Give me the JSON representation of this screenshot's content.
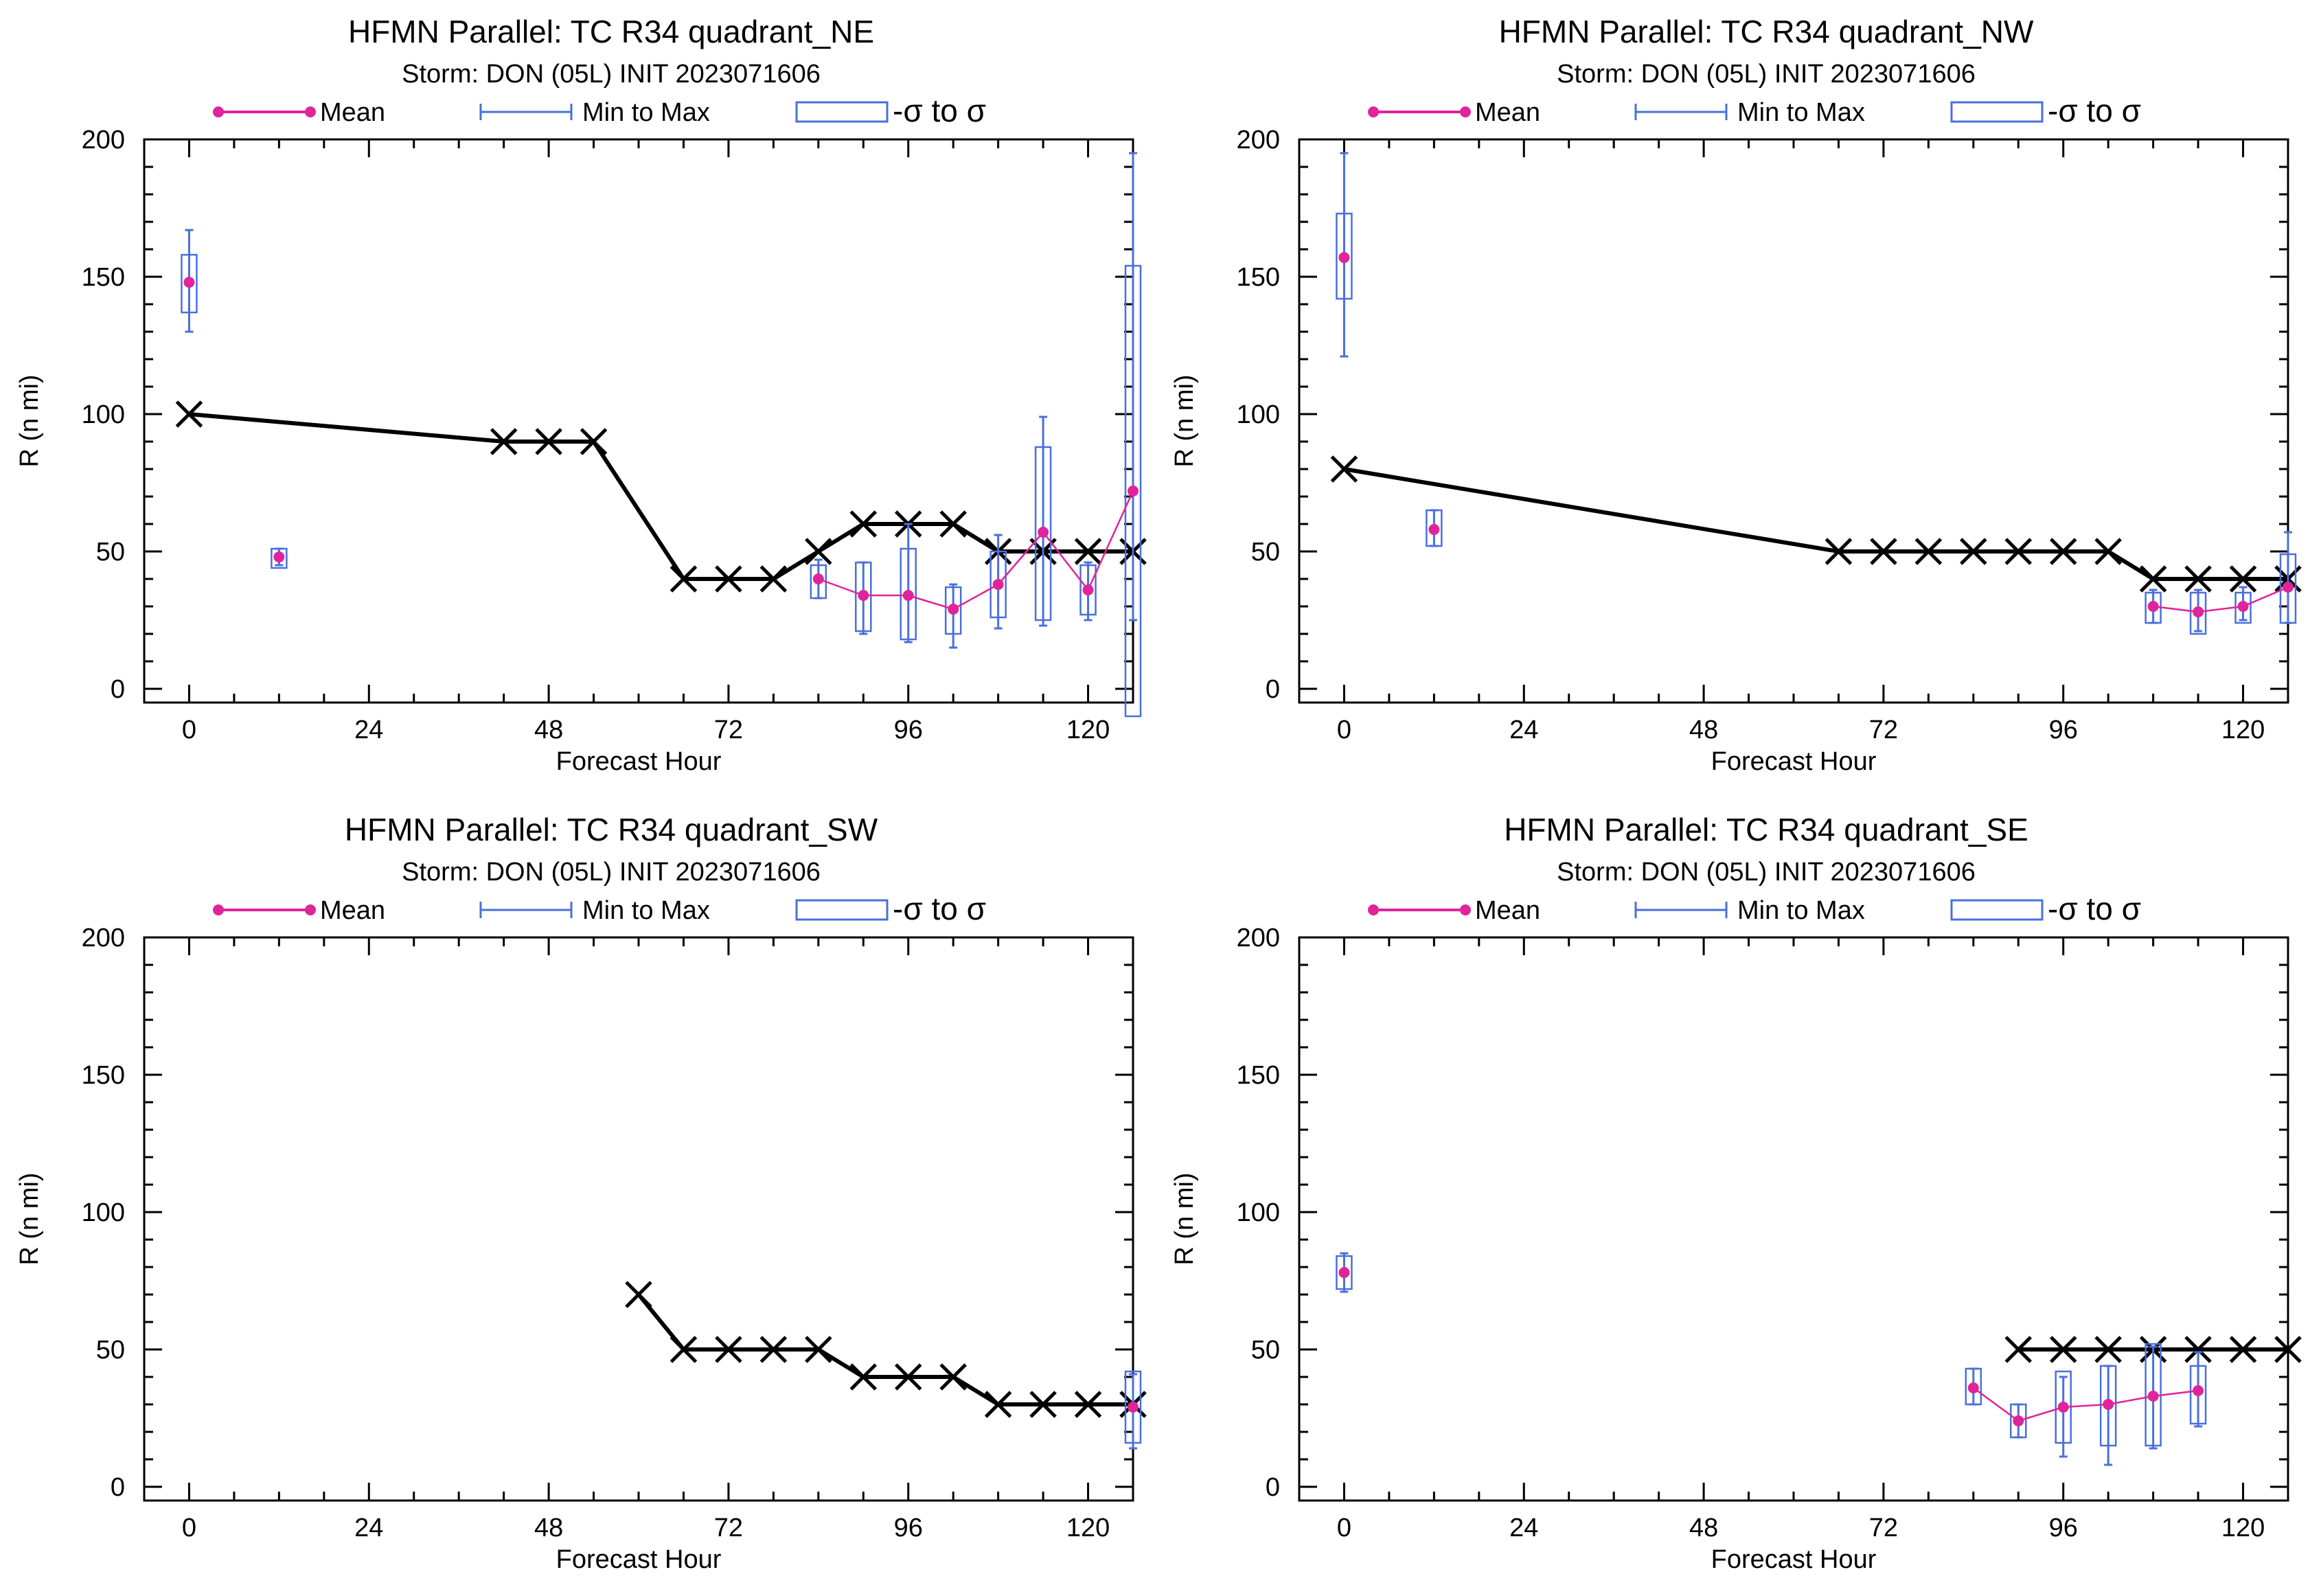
{
  "colors": {
    "mean": "#e0249a",
    "minmax": "#4a6fdc",
    "sigma": "#4a6fdc",
    "obs": "#000000"
  },
  "legend": {
    "mean": "Mean",
    "minmax": "Min to Max",
    "sigma": "-σ to σ"
  },
  "axes": {
    "xlabel": "Forecast Hour",
    "ylabel": "R (n mi)",
    "xticks": [
      0,
      24,
      48,
      72,
      96,
      120
    ],
    "yticks": [
      0,
      50,
      100,
      150,
      200
    ],
    "xlim": [
      -6,
      126
    ],
    "ylim": [
      -5,
      200
    ]
  },
  "chart_data": [
    {
      "type": "line",
      "title": "HFMN Parallel: TC  R34 quadrant_NE",
      "subtitle": "Storm: DON (05L) INIT 2023071606",
      "xlabel": "Forecast Hour",
      "ylabel": "R (n mi)",
      "obs": [
        [
          0,
          100
        ],
        [
          42,
          90
        ],
        [
          48,
          90
        ],
        [
          54,
          90
        ],
        [
          66,
          40
        ],
        [
          72,
          40
        ],
        [
          78,
          40
        ],
        [
          84,
          50
        ],
        [
          90,
          60
        ],
        [
          96,
          60
        ],
        [
          102,
          60
        ],
        [
          108,
          50
        ],
        [
          114,
          50
        ],
        [
          120,
          50
        ],
        [
          126,
          50
        ]
      ],
      "stats": [
        {
          "x": 0,
          "mean": 148,
          "min": 130,
          "max": 167,
          "lo": 137,
          "hi": 158
        },
        {
          "x": 12,
          "mean": 48,
          "min": 45,
          "max": 51,
          "lo": 44,
          "hi": 51
        },
        {
          "x": 84,
          "mean": 40,
          "min": 33,
          "max": 47,
          "lo": 33,
          "hi": 45
        },
        {
          "x": 90,
          "mean": 34,
          "min": 20,
          "max": 46,
          "lo": 21,
          "hi": 46
        },
        {
          "x": 96,
          "mean": 34,
          "min": 17,
          "max": 60,
          "lo": 18,
          "hi": 51
        },
        {
          "x": 102,
          "mean": 29,
          "min": 15,
          "max": 38,
          "lo": 20,
          "hi": 37
        },
        {
          "x": 108,
          "mean": 38,
          "min": 22,
          "max": 56,
          "lo": 26,
          "hi": 50
        },
        {
          "x": 114,
          "mean": 57,
          "min": 23,
          "max": 99,
          "lo": 25,
          "hi": 88
        },
        {
          "x": 120,
          "mean": 36,
          "min": 25,
          "max": 46,
          "lo": 27,
          "hi": 45
        },
        {
          "x": 126,
          "mean": 72,
          "min": 25,
          "max": 195,
          "lo": -10,
          "hi": 154
        }
      ]
    },
    {
      "type": "line",
      "title": "HFMN Parallel: TC  R34 quadrant_NW",
      "subtitle": "Storm: DON (05L) INIT 2023071606",
      "xlabel": "Forecast Hour",
      "ylabel": "R (n mi)",
      "obs": [
        [
          0,
          80
        ],
        [
          66,
          50
        ],
        [
          72,
          50
        ],
        [
          78,
          50
        ],
        [
          84,
          50
        ],
        [
          90,
          50
        ],
        [
          96,
          50
        ],
        [
          102,
          50
        ],
        [
          108,
          40
        ],
        [
          114,
          40
        ],
        [
          120,
          40
        ],
        [
          126,
          40
        ]
      ],
      "stats": [
        {
          "x": 0,
          "mean": 157,
          "min": 121,
          "max": 195,
          "lo": 142,
          "hi": 173
        },
        {
          "x": 12,
          "mean": 58,
          "min": 52,
          "max": 65,
          "lo": 52,
          "hi": 65
        },
        {
          "x": 108,
          "mean": 30,
          "min": 24,
          "max": 36,
          "lo": 24,
          "hi": 35
        },
        {
          "x": 114,
          "mean": 28,
          "min": 21,
          "max": 36,
          "lo": 20,
          "hi": 35
        },
        {
          "x": 120,
          "mean": 30,
          "min": 25,
          "max": 37,
          "lo": 24,
          "hi": 35
        },
        {
          "x": 126,
          "mean": 37,
          "min": 24,
          "max": 57,
          "lo": 24,
          "hi": 49
        }
      ]
    },
    {
      "type": "line",
      "title": "HFMN Parallel: TC  R34 quadrant_SW",
      "subtitle": "Storm: DON (05L) INIT 2023071606",
      "xlabel": "Forecast Hour",
      "ylabel": "R (n mi)",
      "obs": [
        [
          60,
          70
        ],
        [
          66,
          50
        ],
        [
          72,
          50
        ],
        [
          78,
          50
        ],
        [
          84,
          50
        ],
        [
          90,
          40
        ],
        [
          96,
          40
        ],
        [
          102,
          40
        ],
        [
          108,
          30
        ],
        [
          114,
          30
        ],
        [
          120,
          30
        ],
        [
          126,
          30
        ]
      ],
      "stats": [
        {
          "x": 126,
          "mean": 29,
          "min": 14,
          "max": 41,
          "lo": 16,
          "hi": 42
        }
      ]
    },
    {
      "type": "line",
      "title": "HFMN Parallel: TC  R34 quadrant_SE",
      "subtitle": "Storm: DON (05L) INIT 2023071606",
      "xlabel": "Forecast Hour",
      "ylabel": "R (n mi)",
      "obs": [
        [
          90,
          50
        ],
        [
          96,
          50
        ],
        [
          102,
          50
        ],
        [
          108,
          50
        ],
        [
          114,
          50
        ],
        [
          120,
          50
        ],
        [
          126,
          50
        ]
      ],
      "stats": [
        {
          "x": 0,
          "mean": 78,
          "min": 71,
          "max": 85,
          "lo": 72,
          "hi": 84
        },
        {
          "x": 84,
          "mean": 36,
          "min": 30,
          "max": 43,
          "lo": 30,
          "hi": 43
        },
        {
          "x": 90,
          "mean": 24,
          "min": 18,
          "max": 30,
          "lo": 18,
          "hi": 30
        },
        {
          "x": 96,
          "mean": 29,
          "min": 11,
          "max": 40,
          "lo": 16,
          "hi": 42
        },
        {
          "x": 102,
          "mean": 30,
          "min": 8,
          "max": 44,
          "lo": 15,
          "hi": 44
        },
        {
          "x": 108,
          "mean": 33,
          "min": 14,
          "max": 51,
          "lo": 15,
          "hi": 52
        },
        {
          "x": 114,
          "mean": 35,
          "min": 22,
          "max": 49,
          "lo": 23,
          "hi": 44
        }
      ]
    }
  ]
}
